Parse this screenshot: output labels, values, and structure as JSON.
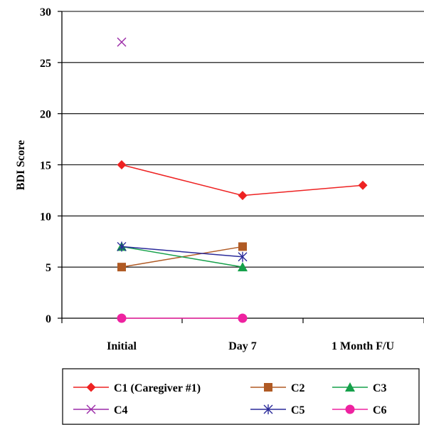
{
  "chart_data": {
    "type": "line",
    "title": "",
    "ylabel": "BDI Score",
    "xlabel": "",
    "categories": [
      "Initial",
      "Day 7",
      "1 Month F/U"
    ],
    "ylim": [
      0,
      30
    ],
    "yticks": [
      0,
      5,
      10,
      15,
      20,
      25,
      30
    ],
    "grid": "horizontal",
    "legend_position": "bottom",
    "series": [
      {
        "name": "C1 (Caregiver #1)",
        "color": "#ee2222",
        "marker": "diamond",
        "values": [
          15,
          12,
          13
        ]
      },
      {
        "name": "C2",
        "color": "#b05a24",
        "marker": "square",
        "values": [
          5,
          7,
          null
        ]
      },
      {
        "name": "C3",
        "color": "#15a04a",
        "marker": "triangle",
        "values": [
          7,
          5,
          null
        ]
      },
      {
        "name": "C4",
        "color": "#9b2aa8",
        "marker": "x",
        "values": [
          27,
          null,
          null
        ]
      },
      {
        "name": "C5",
        "color": "#2a2a9a",
        "marker": "asterisk",
        "values": [
          7,
          6,
          null
        ]
      },
      {
        "name": "C6",
        "color": "#ee22a0",
        "marker": "circle",
        "values": [
          0,
          0,
          null
        ]
      }
    ]
  }
}
